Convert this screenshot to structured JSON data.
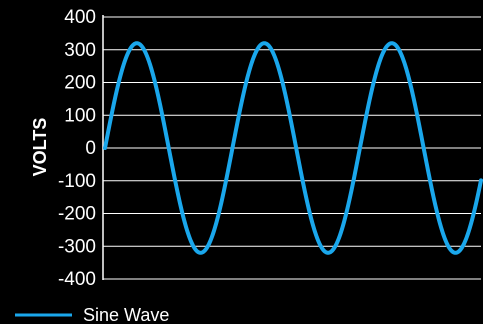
{
  "chart_data": {
    "type": "line",
    "title": "",
    "xlabel": "",
    "ylabel": "VOLTS",
    "ylim": [
      -400,
      400
    ],
    "yticks": [
      400,
      300,
      200,
      100,
      0,
      -100,
      -200,
      -300,
      -400
    ],
    "grid": "horizontal",
    "legend": "bottom-left",
    "series": [
      {
        "name": "Sine Wave",
        "color": "#1aa7ec",
        "amplitude": 320,
        "cycles": 2.95,
        "phase_start": 0,
        "x": [
          0,
          0.25,
          0.5,
          0.75,
          1,
          1.25,
          1.5,
          1.75,
          2,
          2.25,
          2.5,
          2.75,
          2.95
        ],
        "values": [
          0,
          320,
          0,
          -320,
          0,
          320,
          0,
          -320,
          0,
          320,
          0,
          -320,
          -130
        ]
      }
    ]
  }
}
